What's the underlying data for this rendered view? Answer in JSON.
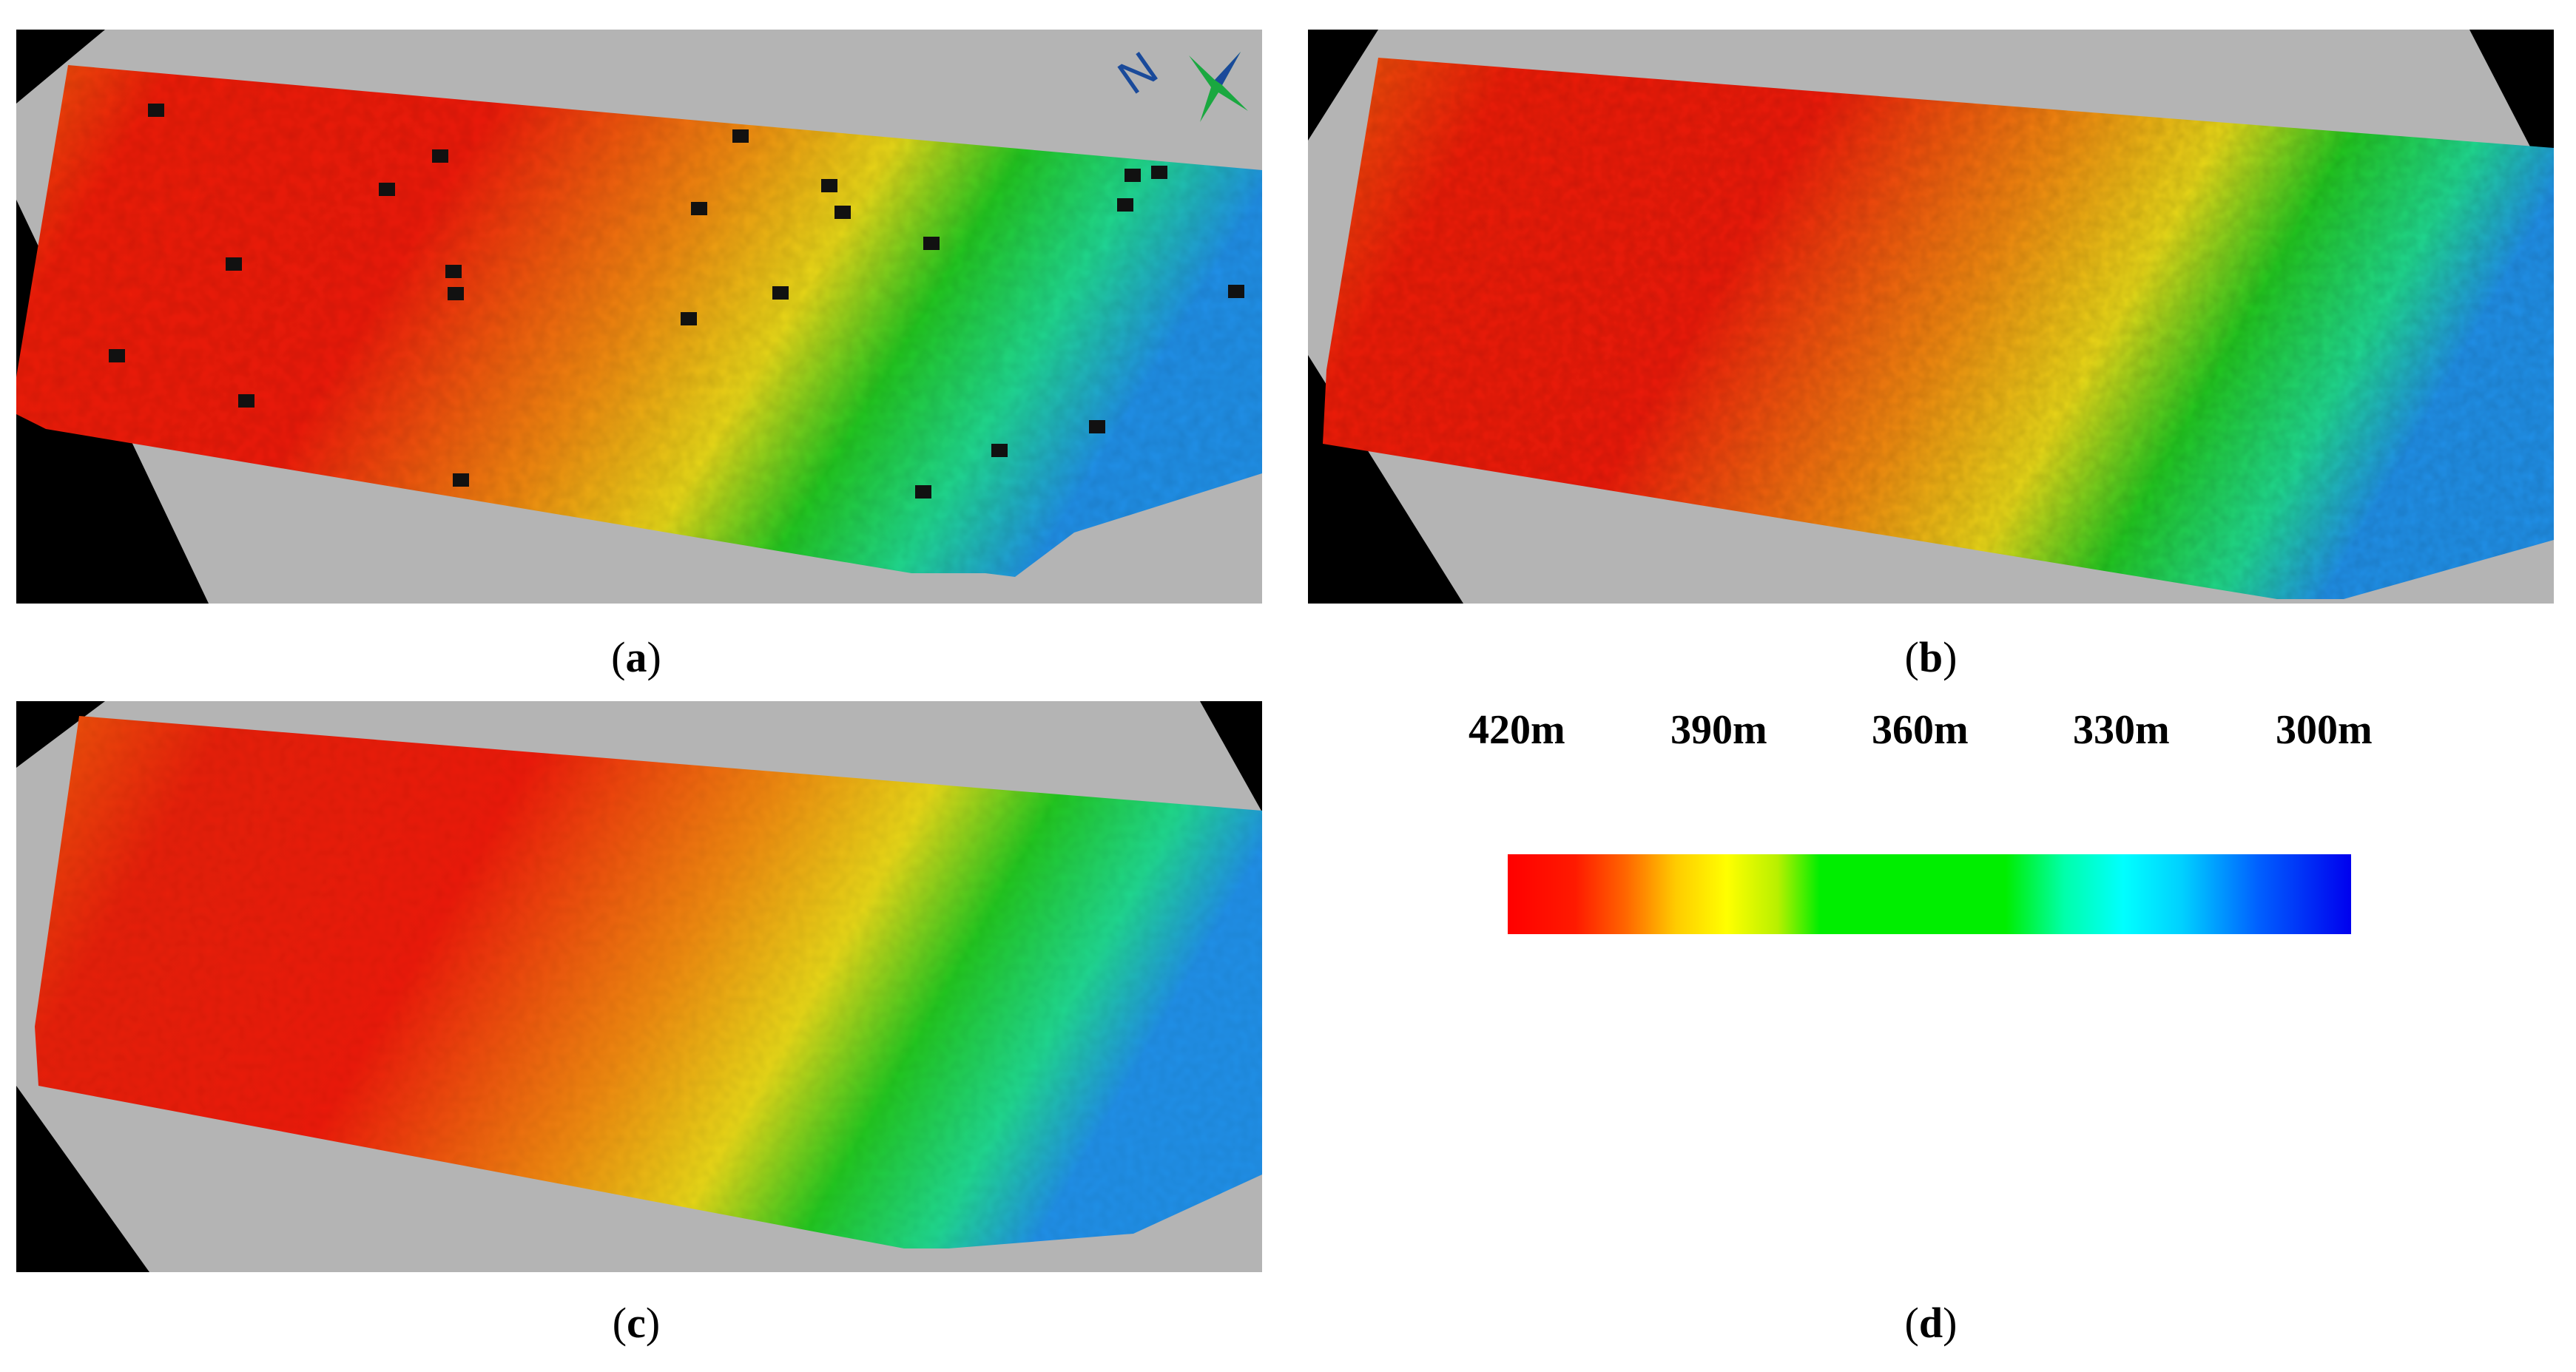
{
  "figure": {
    "panels": [
      {
        "id": "a",
        "caption_open": "(",
        "caption_letter": "a",
        "caption_close": ")"
      },
      {
        "id": "b",
        "caption_open": "(",
        "caption_letter": "b",
        "caption_close": ")"
      },
      {
        "id": "c",
        "caption_open": "(",
        "caption_letter": "c",
        "caption_close": ")"
      },
      {
        "id": "d",
        "caption_open": "(",
        "caption_letter": "d",
        "caption_close": ")"
      }
    ],
    "north_arrow_label": "N",
    "legend": {
      "labels": [
        "420m",
        "390m",
        "360m",
        "330m",
        "300m"
      ],
      "colors": [
        "#ff0000",
        "#ffff00",
        "#00ee00",
        "#00ffff",
        "#0000ee"
      ]
    }
  }
}
